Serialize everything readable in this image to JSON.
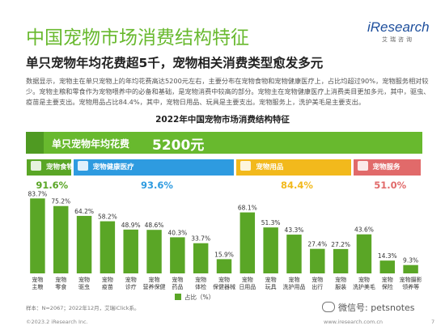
{
  "header": {
    "title": "中国宠物市场消费结构特征",
    "subtitle": "单只宠物年均花费超5千，宠物相关消费类型愈发多元",
    "description": "数据显示，宠物主在单只宠物上的年均花费高达5200元左右，主要分布在宠物食物和宠物健康医疗上，占比均超过90%，宠物服务相对较少。宠物主粮和零食作为宠物喂养中的必备和基础，是宠物消费中较高的部分。宠物主在宠物健康医疗上消费类目更加多元，其中，驱虫、疫苗是主要支出。宠物用品占比84.4%，其中，宠物日用品、玩具是主要支出。宠物服务上，洗护美毛是主要支出。"
  },
  "logo": {
    "brand": "iResearch",
    "sub": "艾瑞咨询"
  },
  "banner": {
    "label": "单只宠物年均花费",
    "value": "5200元"
  },
  "categories": [
    {
      "name": "宠物食物",
      "share": "91.6%",
      "color": "#5aa626",
      "share_color": "#5aa626"
    },
    {
      "name": "宠物健康医疗",
      "share": "93.6%",
      "color": "#2e9be0",
      "share_color": "#2e9be0"
    },
    {
      "name": "宠物用品",
      "share": "84.4%",
      "color": "#f2b91c",
      "share_color": "#f2b91c"
    },
    {
      "name": "宠物服务",
      "share": "51.0%",
      "color": "#e16a6a",
      "share_color": "#e16a6a"
    }
  ],
  "chart_data": {
    "type": "bar",
    "title": "2022年中国宠物市场消费结构特征",
    "categories": [
      "宠物\n主粮",
      "宠物\n零食",
      "宠物\n驱虫",
      "宠物\n疫苗",
      "宠物\n诊疗",
      "宠物\n营养保健",
      "宠物\n药品",
      "宠物\n体检",
      "宠物\n保健器械",
      "宠物\n日用品",
      "宠物\n玩具",
      "宠物\n洗护用品",
      "宠物\n出行",
      "宠物\n服装",
      "宠物\n洗护美毛",
      "宠物\n保险",
      "宠物摄影\n领养等"
    ],
    "groups": [
      0,
      0,
      1,
      1,
      1,
      1,
      1,
      1,
      1,
      2,
      2,
      2,
      2,
      2,
      3,
      3,
      3
    ],
    "series": [
      {
        "name": "占比（%）",
        "values": [
          83.7,
          75.2,
          64.2,
          58.2,
          48.9,
          48.6,
          40.3,
          33.7,
          15.9,
          68.1,
          51.3,
          43.3,
          27.4,
          27.2,
          43.6,
          14.3,
          9.3
        ]
      }
    ],
    "labels": [
      "83.7%",
      "75.2%",
      "64.2%",
      "58.2%",
      "48.9%",
      "48.6%",
      "40.3%",
      "33.7%",
      "15.9%",
      "68.1%",
      "51.3%",
      "43.3%",
      "27.4%",
      "27.2%",
      "43.6%",
      "14.3%",
      "9.3%"
    ],
    "ylim": [
      0,
      100
    ],
    "bar_color": "#5aa626",
    "legend": "bottom-center",
    "grid": false
  },
  "footer": {
    "note": "样本：N=2067；2022年12月，艾瑞iClick系。",
    "wechat": "微信号: petsnotes",
    "copyright": "©2023.2 iResearch Inc.",
    "site": "www.iresearch.com.cn",
    "page": "7"
  }
}
